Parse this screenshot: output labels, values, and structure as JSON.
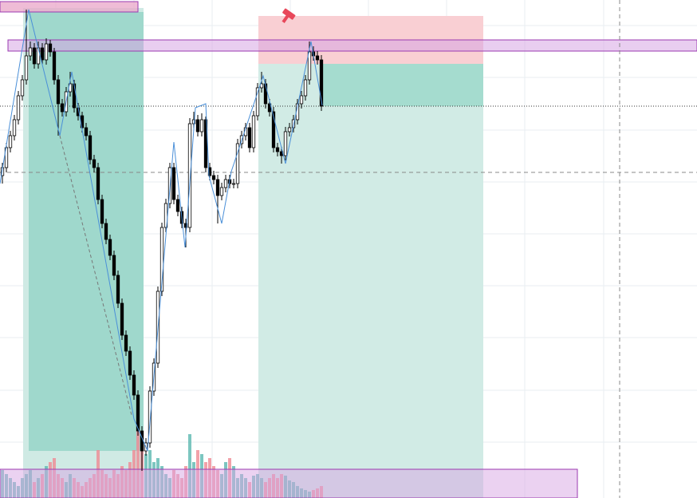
{
  "chart_data": {
    "type": "candlestick",
    "open": [
      404,
      414,
      439,
      454,
      474,
      504,
      524,
      554,
      564,
      544,
      564,
      549,
      569,
      559,
      524,
      494,
      484,
      509,
      519,
      489,
      479,
      464,
      454,
      424,
      414,
      374,
      344,
      324,
      304,
      279,
      244,
      204,
      184,
      154,
      129,
      84,
      59,
      69,
      134,
      169,
      259,
      339,
      369,
      414,
      374,
      359,
      344,
      339,
      469,
      474,
      459,
      474,
      414,
      404,
      399,
      379,
      389,
      399,
      394,
      394,
      444,
      454,
      464,
      439,
      479,
      514,
      519,
      494,
      484,
      439,
      434,
      429,
      459,
      464,
      474,
      494,
      504,
      524,
      559,
      554,
      549
    ],
    "high": [
      420,
      445,
      460,
      480,
      510,
      530,
      612,
      572,
      570,
      572,
      570,
      576,
      574,
      564,
      530,
      500,
      515,
      534,
      524,
      495,
      484,
      470,
      460,
      430,
      420,
      380,
      350,
      330,
      310,
      285,
      250,
      210,
      190,
      160,
      135,
      90,
      75,
      140,
      175,
      265,
      345,
      375,
      420,
      420,
      380,
      365,
      350,
      476,
      484,
      480,
      482,
      478,
      420,
      410,
      405,
      395,
      405,
      405,
      400,
      450,
      460,
      470,
      470,
      485,
      520,
      534,
      525,
      500,
      490,
      445,
      440,
      465,
      470,
      480,
      500,
      510,
      530,
      572,
      566,
      560,
      555
    ],
    "low": [
      394,
      408,
      433,
      448,
      468,
      498,
      518,
      548,
      538,
      538,
      543,
      543,
      553,
      518,
      454,
      478,
      478,
      503,
      483,
      473,
      458,
      448,
      418,
      408,
      368,
      338,
      318,
      298,
      273,
      238,
      198,
      178,
      148,
      123,
      78,
      34,
      53,
      63,
      128,
      163,
      253,
      333,
      363,
      368,
      353,
      338,
      314,
      333,
      463,
      453,
      453,
      408,
      398,
      393,
      344,
      373,
      383,
      388,
      388,
      388,
      438,
      448,
      433,
      433,
      473,
      508,
      488,
      478,
      433,
      428,
      419,
      423,
      453,
      458,
      468,
      488,
      498,
      518,
      548,
      543,
      485
    ],
    "close": [
      414,
      439,
      454,
      474,
      504,
      524,
      554,
      564,
      544,
      564,
      549,
      569,
      559,
      524,
      494,
      484,
      509,
      519,
      489,
      479,
      464,
      454,
      424,
      414,
      374,
      344,
      324,
      304,
      279,
      244,
      204,
      184,
      154,
      129,
      84,
      59,
      69,
      134,
      169,
      259,
      339,
      369,
      414,
      374,
      359,
      344,
      339,
      469,
      474,
      459,
      474,
      414,
      404,
      399,
      379,
      389,
      399,
      394,
      394,
      444,
      454,
      464,
      439,
      479,
      514,
      519,
      494,
      484,
      439,
      434,
      429,
      459,
      464,
      474,
      494,
      504,
      524,
      559,
      554,
      549,
      491
    ],
    "volume": [
      35,
      30,
      25,
      20,
      15,
      25,
      30,
      35,
      20,
      25,
      30,
      40,
      45,
      50,
      30,
      25,
      20,
      30,
      25,
      20,
      15,
      20,
      25,
      30,
      60,
      35,
      30,
      25,
      35,
      30,
      40,
      35,
      45,
      60,
      100,
      80,
      55,
      60,
      45,
      50,
      40,
      30,
      25,
      35,
      30,
      25,
      40,
      80,
      45,
      60,
      55,
      45,
      50,
      40,
      35,
      30,
      45,
      50,
      40,
      25,
      30,
      25,
      20,
      28,
      30,
      25,
      20,
      25,
      30,
      25,
      30,
      28,
      22,
      20,
      15,
      12,
      10,
      8,
      10,
      12,
      15
    ],
    "ylim": [
      0,
      624
    ],
    "y2lim": [
      0,
      624
    ],
    "up_color": "#ffffff",
    "down_color": "#000000",
    "volume_up_color": "#5bb8b0",
    "volume_down_color": "#ef8a94"
  }
}
